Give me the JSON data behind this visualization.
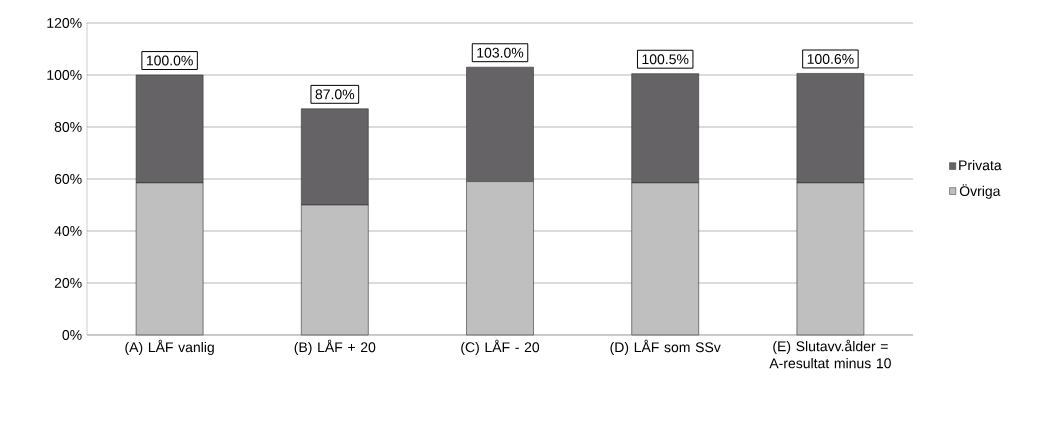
{
  "chart_data": {
    "type": "bar",
    "stacked": true,
    "categories": [
      "(A) LÅF vanlig",
      "(B) LÅF + 20",
      "(C) LÅF - 20",
      "(D) LÅF som SSv",
      "(E) Slutavv.ålder = A-resultat minus 10"
    ],
    "series": [
      {
        "name": "Övriga",
        "color": "#c0bfc0",
        "values": [
          58.5,
          50,
          59,
          58.5,
          58.5
        ]
      },
      {
        "name": "Privata",
        "color": "#656365",
        "values": [
          41.5,
          37,
          44,
          42,
          42.1
        ]
      }
    ],
    "totals": [
      "100.0%",
      "87.0%",
      "103.0%",
      "100.5%",
      "100.6%"
    ],
    "ylim": [
      0,
      120
    ],
    "yticks": [
      {
        "value": 0,
        "label": "0%"
      },
      {
        "value": 20,
        "label": "20%"
      },
      {
        "value": 40,
        "label": "40%"
      },
      {
        "value": 60,
        "label": "60%"
      },
      {
        "value": 80,
        "label": "80%"
      },
      {
        "value": 100,
        "label": "100%"
      },
      {
        "value": 120,
        "label": "120%"
      }
    ],
    "grid": "y",
    "legend": "right"
  }
}
